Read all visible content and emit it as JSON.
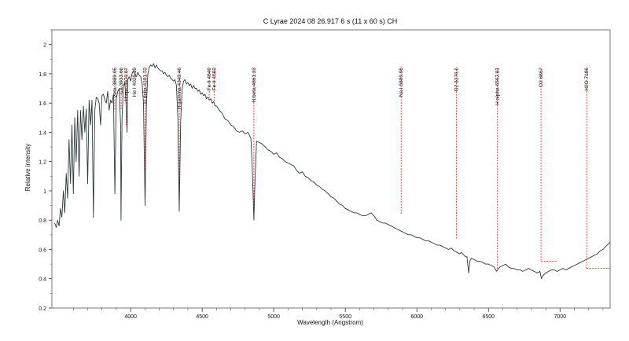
{
  "chart_data": {
    "type": "line",
    "title": "C Lyrae  2024 08 26.917   6 s (11 x 60 s)   CH",
    "xlabel": "Wavelength (Angstrom)",
    "ylabel": "Relative intensity",
    "xlim": [
      3450,
      7350
    ],
    "ylim": [
      0.2,
      2.1
    ],
    "x_ticks": [
      4000,
      4500,
      5000,
      5500,
      6000,
      6500,
      7000
    ],
    "y_ticks": [
      0.2,
      0.4,
      0.6,
      0.8,
      1.0,
      1.2,
      1.4,
      1.6,
      1.8,
      2.0
    ],
    "y_tick_labels": [
      "0.2",
      "0.4",
      "0.6",
      "0.8",
      "1",
      "1.2",
      "1.4",
      "1.6",
      "1.8",
      "2"
    ],
    "series": [
      {
        "color": "#2a3a3a",
        "points": [
          [
            3470,
            0.78
          ],
          [
            3480,
            0.75
          ],
          [
            3490,
            0.8
          ],
          [
            3500,
            0.76
          ],
          [
            3510,
            0.88
          ],
          [
            3520,
            0.82
          ],
          [
            3530,
            1.0
          ],
          [
            3540,
            0.85
          ],
          [
            3550,
            1.12
          ],
          [
            3560,
            0.95
          ],
          [
            3570,
            1.35
          ],
          [
            3580,
            1.05
          ],
          [
            3590,
            1.45
          ],
          [
            3600,
            0.98
          ],
          [
            3610,
            1.5
          ],
          [
            3620,
            1.2
          ],
          [
            3630,
            1.55
          ],
          [
            3640,
            1.1
          ],
          [
            3650,
            1.55
          ],
          [
            3660,
            1.35
          ],
          [
            3670,
            1.58
          ],
          [
            3680,
            1.4
          ],
          [
            3690,
            1.56
          ],
          [
            3700,
            1.05
          ],
          [
            3710,
            1.62
          ],
          [
            3720,
            1.45
          ],
          [
            3730,
            1.62
          ],
          [
            3740,
            0.82
          ],
          [
            3750,
            1.55
          ],
          [
            3760,
            1.64
          ],
          [
            3770,
            1.63
          ],
          [
            3780,
            1.6
          ],
          [
            3790,
            1.45
          ],
          [
            3800,
            1.65
          ],
          [
            3810,
            1.66
          ],
          [
            3820,
            1.62
          ],
          [
            3830,
            1.6
          ],
          [
            3840,
            1.68
          ],
          [
            3850,
            1.55
          ],
          [
            3860,
            1.62
          ],
          [
            3870,
            1.6
          ],
          [
            3880,
            1.66
          ],
          [
            3890,
            0.98
          ],
          [
            3900,
            1.63
          ],
          [
            3910,
            1.68
          ],
          [
            3920,
            1.7
          ],
          [
            3930,
            1.45
          ],
          [
            3933,
            0.8
          ],
          [
            3940,
            1.5
          ],
          [
            3950,
            1.72
          ],
          [
            3960,
            1.74
          ],
          [
            3970,
            1.55
          ],
          [
            3975,
            1.4
          ],
          [
            3980,
            1.76
          ],
          [
            3990,
            1.78
          ],
          [
            4000,
            1.75
          ],
          [
            4010,
            1.8
          ],
          [
            4020,
            1.82
          ],
          [
            4030,
            1.8
          ],
          [
            4040,
            1.78
          ],
          [
            4050,
            1.81
          ],
          [
            4060,
            1.79
          ],
          [
            4070,
            1.78
          ],
          [
            4080,
            1.74
          ],
          [
            4090,
            1.6
          ],
          [
            4101,
            0.9
          ],
          [
            4110,
            1.58
          ],
          [
            4120,
            1.8
          ],
          [
            4130,
            1.84
          ],
          [
            4140,
            1.86
          ],
          [
            4150,
            1.85
          ],
          [
            4160,
            1.87
          ],
          [
            4170,
            1.84
          ],
          [
            4180,
            1.86
          ],
          [
            4190,
            1.84
          ],
          [
            4200,
            1.83
          ],
          [
            4210,
            1.82
          ],
          [
            4220,
            1.82
          ],
          [
            4230,
            1.8
          ],
          [
            4240,
            1.81
          ],
          [
            4250,
            1.79
          ],
          [
            4260,
            1.78
          ],
          [
            4270,
            1.79
          ],
          [
            4280,
            1.77
          ],
          [
            4290,
            1.76
          ],
          [
            4300,
            1.75
          ],
          [
            4310,
            1.76
          ],
          [
            4320,
            1.72
          ],
          [
            4330,
            1.5
          ],
          [
            4340,
            0.86
          ],
          [
            4350,
            1.48
          ],
          [
            4360,
            1.7
          ],
          [
            4370,
            1.75
          ],
          [
            4380,
            1.76
          ],
          [
            4390,
            1.73
          ],
          [
            4400,
            1.74
          ],
          [
            4410,
            1.72
          ],
          [
            4420,
            1.73
          ],
          [
            4430,
            1.7
          ],
          [
            4440,
            1.72
          ],
          [
            4450,
            1.7
          ],
          [
            4460,
            1.7
          ],
          [
            4470,
            1.68
          ],
          [
            4480,
            1.69
          ],
          [
            4490,
            1.66
          ],
          [
            4500,
            1.67
          ],
          [
            4510,
            1.65
          ],
          [
            4520,
            1.66
          ],
          [
            4530,
            1.63
          ],
          [
            4540,
            1.64
          ],
          [
            4550,
            1.62
          ],
          [
            4560,
            1.63
          ],
          [
            4570,
            1.6
          ],
          [
            4580,
            1.61
          ],
          [
            4590,
            1.58
          ],
          [
            4600,
            1.58
          ],
          [
            4620,
            1.55
          ],
          [
            4640,
            1.53
          ],
          [
            4660,
            1.49
          ],
          [
            4680,
            1.48
          ],
          [
            4700,
            1.45
          ],
          [
            4720,
            1.44
          ],
          [
            4740,
            1.41
          ],
          [
            4760,
            1.4
          ],
          [
            4780,
            1.41
          ],
          [
            4800,
            1.39
          ],
          [
            4820,
            1.4
          ],
          [
            4840,
            1.36
          ],
          [
            4850,
            1.15
          ],
          [
            4861,
            0.8
          ],
          [
            4870,
            1.1
          ],
          [
            4880,
            1.34
          ],
          [
            4900,
            1.33
          ],
          [
            4920,
            1.32
          ],
          [
            4940,
            1.3
          ],
          [
            4960,
            1.28
          ],
          [
            4980,
            1.27
          ],
          [
            5000,
            1.25
          ],
          [
            5020,
            1.26
          ],
          [
            5040,
            1.23
          ],
          [
            5060,
            1.22
          ],
          [
            5080,
            1.2
          ],
          [
            5100,
            1.19
          ],
          [
            5120,
            1.18
          ],
          [
            5140,
            1.17
          ],
          [
            5160,
            1.14
          ],
          [
            5180,
            1.12
          ],
          [
            5200,
            1.13
          ],
          [
            5220,
            1.1
          ],
          [
            5240,
            1.09
          ],
          [
            5260,
            1.07
          ],
          [
            5280,
            1.06
          ],
          [
            5300,
            1.04
          ],
          [
            5320,
            1.03
          ],
          [
            5340,
            1.01
          ],
          [
            5360,
            1.0
          ],
          [
            5380,
            0.98
          ],
          [
            5400,
            0.96
          ],
          [
            5420,
            0.95
          ],
          [
            5440,
            0.93
          ],
          [
            5460,
            0.91
          ],
          [
            5480,
            0.9
          ],
          [
            5500,
            0.88
          ],
          [
            5520,
            0.87
          ],
          [
            5540,
            0.86
          ],
          [
            5560,
            0.85
          ],
          [
            5580,
            0.85
          ],
          [
            5600,
            0.84
          ],
          [
            5620,
            0.83
          ],
          [
            5640,
            0.83
          ],
          [
            5660,
            0.84
          ],
          [
            5680,
            0.85
          ],
          [
            5700,
            0.83
          ],
          [
            5720,
            0.8
          ],
          [
            5740,
            0.79
          ],
          [
            5760,
            0.78
          ],
          [
            5780,
            0.78
          ],
          [
            5800,
            0.77
          ],
          [
            5820,
            0.76
          ],
          [
            5840,
            0.75
          ],
          [
            5860,
            0.74
          ],
          [
            5880,
            0.73
          ],
          [
            5900,
            0.72
          ],
          [
            5920,
            0.71
          ],
          [
            5940,
            0.7
          ],
          [
            5960,
            0.7
          ],
          [
            5980,
            0.69
          ],
          [
            6000,
            0.68
          ],
          [
            6020,
            0.68
          ],
          [
            6040,
            0.67
          ],
          [
            6060,
            0.66
          ],
          [
            6080,
            0.66
          ],
          [
            6100,
            0.65
          ],
          [
            6120,
            0.64
          ],
          [
            6140,
            0.63
          ],
          [
            6160,
            0.63
          ],
          [
            6180,
            0.62
          ],
          [
            6200,
            0.61
          ],
          [
            6220,
            0.6
          ],
          [
            6240,
            0.61
          ],
          [
            6260,
            0.59
          ],
          [
            6280,
            0.58
          ],
          [
            6300,
            0.57
          ],
          [
            6310,
            0.58
          ],
          [
            6320,
            0.57
          ],
          [
            6330,
            0.56
          ],
          [
            6340,
            0.55
          ],
          [
            6350,
            0.55
          ],
          [
            6362,
            0.44
          ],
          [
            6370,
            0.52
          ],
          [
            6380,
            0.54
          ],
          [
            6400,
            0.53
          ],
          [
            6420,
            0.52
          ],
          [
            6440,
            0.52
          ],
          [
            6460,
            0.51
          ],
          [
            6480,
            0.5
          ],
          [
            6500,
            0.5
          ],
          [
            6520,
            0.49
          ],
          [
            6540,
            0.48
          ],
          [
            6556,
            0.45
          ],
          [
            6563,
            0.46
          ],
          [
            6570,
            0.47
          ],
          [
            6580,
            0.48
          ],
          [
            6600,
            0.49
          ],
          [
            6620,
            0.5
          ],
          [
            6640,
            0.48
          ],
          [
            6660,
            0.47
          ],
          [
            6680,
            0.47
          ],
          [
            6700,
            0.46
          ],
          [
            6720,
            0.46
          ],
          [
            6740,
            0.45
          ],
          [
            6760,
            0.46
          ],
          [
            6780,
            0.47
          ],
          [
            6800,
            0.46
          ],
          [
            6820,
            0.45
          ],
          [
            6840,
            0.44
          ],
          [
            6860,
            0.45
          ],
          [
            6870,
            0.4
          ],
          [
            6880,
            0.42
          ],
          [
            6900,
            0.44
          ],
          [
            6920,
            0.45
          ],
          [
            6940,
            0.46
          ],
          [
            6960,
            0.46
          ],
          [
            6980,
            0.45
          ],
          [
            7000,
            0.46
          ],
          [
            7020,
            0.47
          ],
          [
            7040,
            0.46
          ],
          [
            7060,
            0.47
          ],
          [
            7080,
            0.48
          ],
          [
            7100,
            0.49
          ],
          [
            7120,
            0.5
          ],
          [
            7140,
            0.51
          ],
          [
            7160,
            0.52
          ],
          [
            7180,
            0.53
          ],
          [
            7200,
            0.54
          ],
          [
            7220,
            0.55
          ],
          [
            7240,
            0.56
          ],
          [
            7260,
            0.57
          ],
          [
            7280,
            0.59
          ],
          [
            7300,
            0.6
          ],
          [
            7320,
            0.62
          ],
          [
            7340,
            0.64
          ],
          [
            7350,
            0.65
          ]
        ]
      }
    ],
    "annotation_color": "#dd2222",
    "annotations": [
      {
        "label": "zeta 3889.05",
        "x": 3889,
        "y": 1.55
      },
      {
        "label": "Ca 3933.66",
        "x": 3934,
        "y": 1.55
      },
      {
        "label": "H eps 3970.07",
        "x": 3970,
        "y": 1.45
      },
      {
        "label": "He I 4026.19",
        "x": 4026,
        "y": 1.75
      },
      {
        "label": "H delta 4101.73",
        "x": 4102,
        "y": 0.95
      },
      {
        "label": "H gamma 4340.46",
        "x": 4340,
        "y": 0.9
      },
      {
        "label": "Fe II 4549",
        "x": 4549,
        "y": 1.62
      },
      {
        "label": "Fe II 4583",
        "x": 4583,
        "y": 1.6
      },
      {
        "label": "H beta 4861.33",
        "x": 4861,
        "y": 0.82
      },
      {
        "label": "Na I 5889.95",
        "x": 5890,
        "y": 0.84
      },
      {
        "label": "O2 6276.6",
        "x": 6277,
        "y": 0.67
      },
      {
        "label": "H alpha 6562.81",
        "x": 6563,
        "y": 0.46
      },
      {
        "label": "O2 6867",
        "x": 6867,
        "y": 0.52
      },
      {
        "label": "H2O 7186",
        "x": 7186,
        "y": 0.47
      }
    ],
    "annotation_tails": [
      {
        "x1": 6867,
        "x2": 6980,
        "y": 0.52
      },
      {
        "x1": 7186,
        "x2": 7350,
        "y": 0.47
      }
    ]
  }
}
